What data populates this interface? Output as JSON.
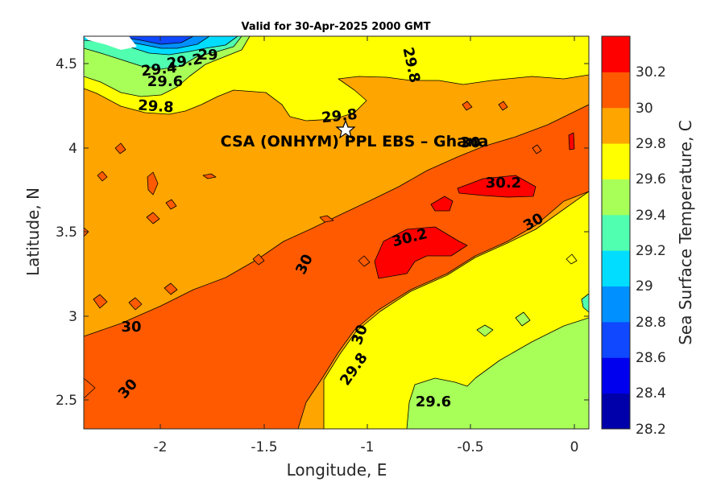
{
  "title": "Valid for 30-Apr-2025 2000 GMT",
  "site_label": "CSA (ONHYM) PPL EBS  – Ghana",
  "x_axis": {
    "label": "Longitude, E",
    "ticks": [
      "-2",
      "-1.5",
      "-1",
      "-0.5",
      "0"
    ]
  },
  "y_axis": {
    "label": "Latitude, N",
    "ticks": [
      "4.5",
      "4",
      "3.5",
      "3",
      "2.5"
    ]
  },
  "colorbar": {
    "label": "Sea Surface Temperature, C",
    "ticks": [
      "30.2",
      "30",
      "29.8",
      "29.6",
      "29.4",
      "29.2",
      "29",
      "28.8",
      "28.6",
      "28.4",
      "28.2"
    ],
    "colors": [
      "#0000aa",
      "#0000ee",
      "#0f48ff",
      "#0090ff",
      "#00ddff",
      "#50ffb0",
      "#a8ff58",
      "#ffff00",
      "#ffa500",
      "#ff5a00",
      "#ff0000"
    ]
  },
  "contour_labels": [
    "29",
    "29.2",
    "29.4",
    "29.6",
    "29.8",
    "29.8",
    "29.8",
    "30",
    "30.2",
    "30.2",
    "30",
    "30",
    "30",
    "30",
    "29.8",
    "29.6",
    "30"
  ],
  "chart_data": {
    "type": "heatmap",
    "title": "Valid for 30-Apr-2025 2000 GMT",
    "xlabel": "Longitude, E",
    "ylabel": "Latitude, N",
    "xlim": [
      -2.35,
      0.07
    ],
    "ylim": [
      2.32,
      4.66
    ],
    "levels": [
      28.2,
      28.4,
      28.6,
      28.8,
      29.0,
      29.2,
      29.4,
      29.6,
      29.8,
      30.0,
      30.2,
      30.4
    ],
    "colorbar_label": "Sea Surface Temperature, C",
    "site": {
      "name": "CSA (ONHYM) PPL EBS  – Ghana",
      "lon": -1.1,
      "lat": 4.1
    }
  }
}
